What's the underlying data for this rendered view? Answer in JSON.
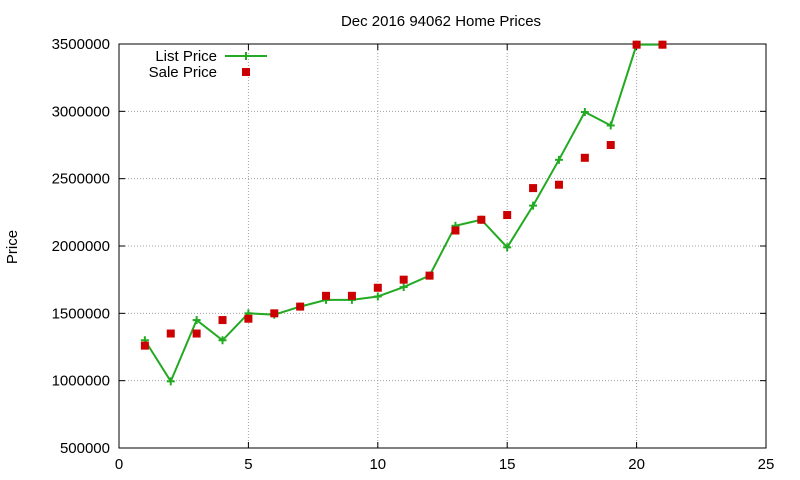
{
  "chart_data": {
    "type": "line",
    "title": "Dec 2016 94062 Home Prices",
    "xlabel": "",
    "ylabel": "Price",
    "xlim": [
      0,
      25
    ],
    "ylim": [
      500000,
      3500000
    ],
    "x_ticks": [
      0,
      5,
      10,
      15,
      20,
      25
    ],
    "y_ticks": [
      500000,
      1000000,
      1500000,
      2000000,
      2500000,
      3000000,
      3500000
    ],
    "grid": true,
    "legend_position": "top-left",
    "series": [
      {
        "name": "List Price",
        "style": "line+cross",
        "color": "#22aa22",
        "x": [
          1,
          2,
          3,
          4,
          5,
          6,
          7,
          8,
          9,
          10,
          11,
          12,
          13,
          14,
          15,
          16,
          17,
          18,
          19,
          20,
          21
        ],
        "values": [
          1300000,
          995000,
          1450000,
          1300000,
          1500000,
          1490000,
          1550000,
          1600000,
          1600000,
          1625000,
          1695000,
          1780000,
          2150000,
          2195000,
          1990000,
          2300000,
          2640000,
          2995000,
          2895000,
          3495000,
          3495000
        ]
      },
      {
        "name": "Sale Price",
        "style": "square",
        "color": "#cc0000",
        "x": [
          1,
          2,
          3,
          4,
          5,
          6,
          7,
          8,
          9,
          10,
          11,
          12,
          13,
          14,
          15,
          16,
          17,
          18,
          19,
          20,
          21
        ],
        "values": [
          1260000,
          1350000,
          1350000,
          1450000,
          1460000,
          1500000,
          1550000,
          1630000,
          1630000,
          1690000,
          1750000,
          1780000,
          2115000,
          2195000,
          2230000,
          2430000,
          2455000,
          2655000,
          2750000,
          3495000,
          3495000
        ]
      }
    ]
  }
}
